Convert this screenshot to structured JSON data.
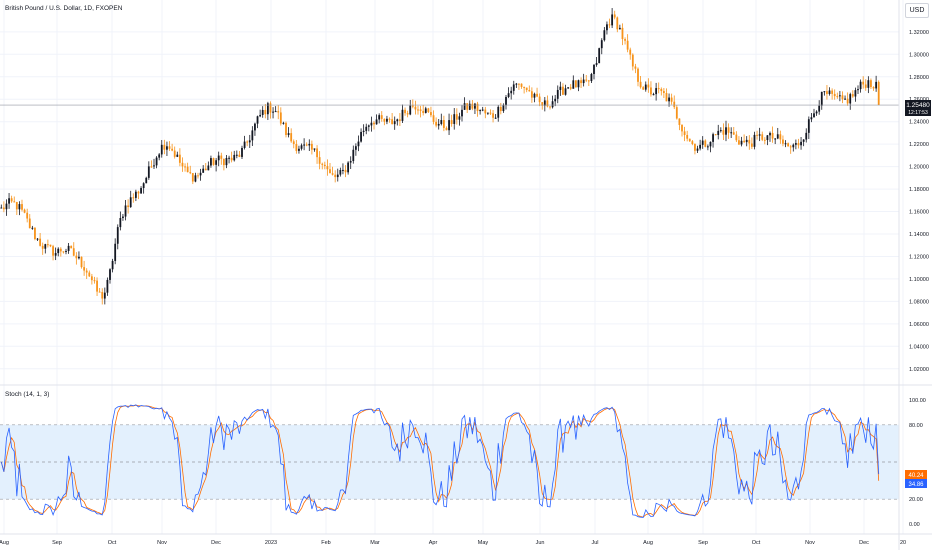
{
  "header": {
    "symbol_title": "British Pound / U.S. Dollar, 1D, FXOPEN",
    "currency_button": "USD"
  },
  "colors": {
    "up_candle": "#131722",
    "down_candle": "#f7931a",
    "stoch_k": "#2962ff",
    "stoch_d": "#ff6d00",
    "band_fill": "#e3f0fd",
    "grid": "#f0f3fa",
    "price_line": "#9598a1"
  },
  "price_axis": {
    "labels": [
      "1.32000",
      "1.30000",
      "1.28000",
      "1.26000",
      "1.24000",
      "1.22000",
      "1.20000",
      "1.18000",
      "1.16000",
      "1.14000",
      "1.12000",
      "1.10000",
      "1.08000",
      "1.06000",
      "1.04000",
      "1.02000"
    ],
    "last_price": "1.25480",
    "countdown": "12:17:53"
  },
  "stoch_axis": {
    "labels": [
      "100.00",
      "80.00",
      "20.00",
      "0.00"
    ],
    "k_value": "40.24",
    "d_value": "34.86"
  },
  "time_axis": {
    "labels": [
      "Aug",
      "Sep",
      "Oct",
      "Nov",
      "Dec",
      "2023",
      "Feb",
      "Mar",
      "Apr",
      "May",
      "Jun",
      "Jul",
      "Aug",
      "Sep",
      "Oct",
      "Nov",
      "Dec",
      "20"
    ]
  },
  "indicator": {
    "label": "Stoch (14, 1, 3)"
  },
  "chart_data": [
    {
      "type": "candlestick",
      "title": "British Pound / U.S. Dollar, 1D, FXOPEN",
      "ylim": [
        1.01,
        1.335
      ],
      "x_range": [
        "Aug 2022",
        "Dec 2023"
      ],
      "last_price": 1.2548,
      "monthly_close": [
        {
          "month": "Aug 2022",
          "close": 1.162
        },
        {
          "month": "Sep 2022",
          "close": 1.116
        },
        {
          "month": "Oct 2022",
          "close": 1.148
        },
        {
          "month": "Nov 2022",
          "close": 1.205
        },
        {
          "month": "Dec 2022",
          "close": 1.209
        },
        {
          "month": "Jan 2023",
          "close": 1.236
        },
        {
          "month": "Feb 2023",
          "close": 1.205
        },
        {
          "month": "Mar 2023",
          "close": 1.233
        },
        {
          "month": "Apr 2023",
          "close": 1.257
        },
        {
          "month": "May 2023",
          "close": 1.244
        },
        {
          "month": "Jun 2023",
          "close": 1.271
        },
        {
          "month": "Jul 2023",
          "close": 1.285
        },
        {
          "month": "Aug 2023",
          "close": 1.267
        },
        {
          "month": "Sep 2023",
          "close": 1.22
        },
        {
          "month": "Oct 2023",
          "close": 1.215
        },
        {
          "month": "Nov 2023",
          "close": 1.262
        },
        {
          "month": "Dec 2023",
          "close": 1.255
        }
      ],
      "extremes": [
        {
          "label": "low",
          "value": 1.035
        },
        {
          "label": "high",
          "value": 1.315
        }
      ]
    },
    {
      "type": "line",
      "title": "Stoch (14, 1, 3)",
      "ylim": [
        0,
        100
      ],
      "bands": [
        20,
        80
      ],
      "series": [
        {
          "name": "%K",
          "last": 40.24
        },
        {
          "name": "%D",
          "last": 34.86
        }
      ]
    }
  ]
}
